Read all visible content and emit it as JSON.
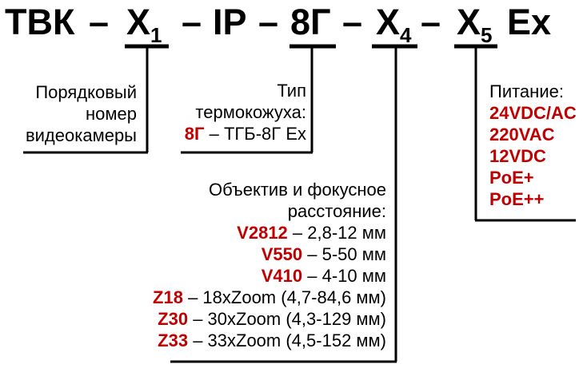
{
  "colors": {
    "accent": "#C00000",
    "ink": "#000000",
    "background": "#FFFFFF"
  },
  "model_code": {
    "tokens": [
      {
        "text": "ТВК"
      },
      {
        "text": "–"
      },
      {
        "text": "Х",
        "sub": "1",
        "underlined": true
      },
      {
        "text": "–"
      },
      {
        "text": "IP"
      },
      {
        "text": "–"
      },
      {
        "text": "8Г",
        "underlined": true
      },
      {
        "text": "–"
      },
      {
        "text": "Х",
        "sub": "4",
        "underlined": true
      },
      {
        "text": "–"
      },
      {
        "text": "Х",
        "sub": "5",
        "underlined": true
      },
      {
        "text": "Ex"
      }
    ]
  },
  "callouts": {
    "serial_number": {
      "lines": [
        "Порядковый",
        "номер",
        "видеокамеры"
      ]
    },
    "housing_type": {
      "heading_lines": [
        "Тип",
        "термокожуха:"
      ],
      "options": [
        {
          "code": "8Г",
          "description": "– ТГБ-8Г Ex"
        }
      ]
    },
    "lens": {
      "heading_lines": [
        "Объектив и фокусное",
        "расстояние:"
      ],
      "options": [
        {
          "code": "V2812",
          "description": "– 2,8-12 мм"
        },
        {
          "code": "V550",
          "description": "– 5-50 мм"
        },
        {
          "code": "V410",
          "description": "– 4-10 мм"
        },
        {
          "code": "Z18",
          "description": "– 18xZoom (4,7-84,6 мм)"
        },
        {
          "code": "Z30",
          "description": "– 30xZoom (4,3-129 мм)"
        },
        {
          "code": "Z33",
          "description": "– 33xZoom (4,5-152 мм)"
        }
      ]
    },
    "power": {
      "heading": "Питание:",
      "options": [
        "24VDC/AC",
        "220VAC",
        "12VDC",
        "PoE+",
        "PoE++"
      ]
    }
  }
}
